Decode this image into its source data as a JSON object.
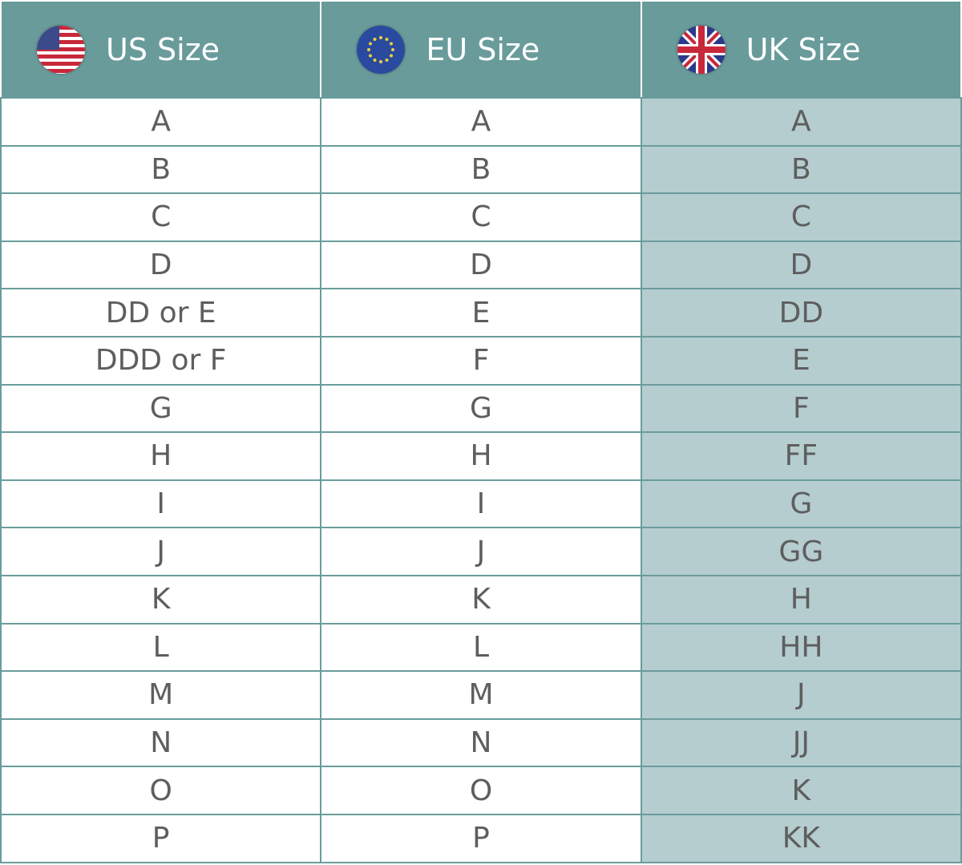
{
  "headers": [
    {
      "label": "US Size",
      "icon": "us-flag-icon"
    },
    {
      "label": "EU Size",
      "icon": "eu-flag-icon"
    },
    {
      "label": "UK Size",
      "icon": "uk-flag-icon"
    }
  ],
  "colors": {
    "header_bg": "#699b9b",
    "uk_column_bg": "#b5cdcf",
    "border": "#6a9c9c",
    "text": "#5e5e5e"
  },
  "rows": [
    [
      "A",
      "A",
      "A"
    ],
    [
      "B",
      "B",
      "B"
    ],
    [
      "C",
      "C",
      "C"
    ],
    [
      "D",
      "D",
      "D"
    ],
    [
      "DD or E",
      "E",
      "DD"
    ],
    [
      "DDD or F",
      "F",
      "E"
    ],
    [
      "G",
      "G",
      "F"
    ],
    [
      "H",
      "H",
      "FF"
    ],
    [
      "I",
      "I",
      "G"
    ],
    [
      "J",
      "J",
      "GG"
    ],
    [
      "K",
      "K",
      "H"
    ],
    [
      "L",
      "L",
      "HH"
    ],
    [
      "M",
      "M",
      "J"
    ],
    [
      "N",
      "N",
      "JJ"
    ],
    [
      "O",
      "O",
      "K"
    ],
    [
      "P",
      "P",
      "KK"
    ]
  ]
}
